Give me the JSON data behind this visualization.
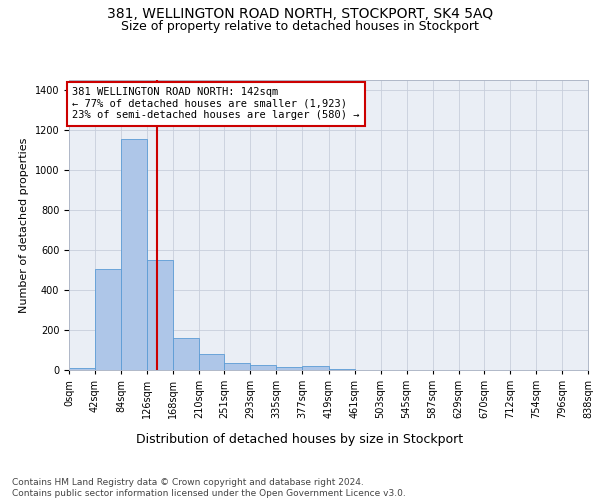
{
  "title1": "381, WELLINGTON ROAD NORTH, STOCKPORT, SK4 5AQ",
  "title2": "Size of property relative to detached houses in Stockport",
  "xlabel": "Distribution of detached houses by size in Stockport",
  "ylabel": "Number of detached properties",
  "footer": "Contains HM Land Registry data © Crown copyright and database right 2024.\nContains public sector information licensed under the Open Government Licence v3.0.",
  "bin_edges": [
    0,
    42,
    84,
    126,
    168,
    210,
    251,
    293,
    335,
    377,
    419,
    461,
    503,
    545,
    587,
    629,
    670,
    712,
    754,
    796,
    838
  ],
  "bar_heights": [
    10,
    505,
    1155,
    550,
    160,
    80,
    35,
    25,
    15,
    20,
    5,
    0,
    0,
    0,
    0,
    0,
    0,
    0,
    0,
    0
  ],
  "bar_color": "#aec6e8",
  "bar_edgecolor": "#5b9bd5",
  "vline_x": 142,
  "vline_color": "#cc0000",
  "annotation_text": "381 WELLINGTON ROAD NORTH: 142sqm\n← 77% of detached houses are smaller (1,923)\n23% of semi-detached houses are larger (580) →",
  "annotation_box_color": "#ffffff",
  "annotation_box_edgecolor": "#cc0000",
  "ylim": [
    0,
    1450
  ],
  "yticks": [
    0,
    200,
    400,
    600,
    800,
    1000,
    1200,
    1400
  ],
  "plot_bg_color": "#eaeef5",
  "title1_fontsize": 10,
  "title2_fontsize": 9,
  "ylabel_fontsize": 8,
  "xlabel_fontsize": 9,
  "tick_label_fontsize": 7,
  "footer_fontsize": 6.5,
  "annot_fontsize": 7.5
}
